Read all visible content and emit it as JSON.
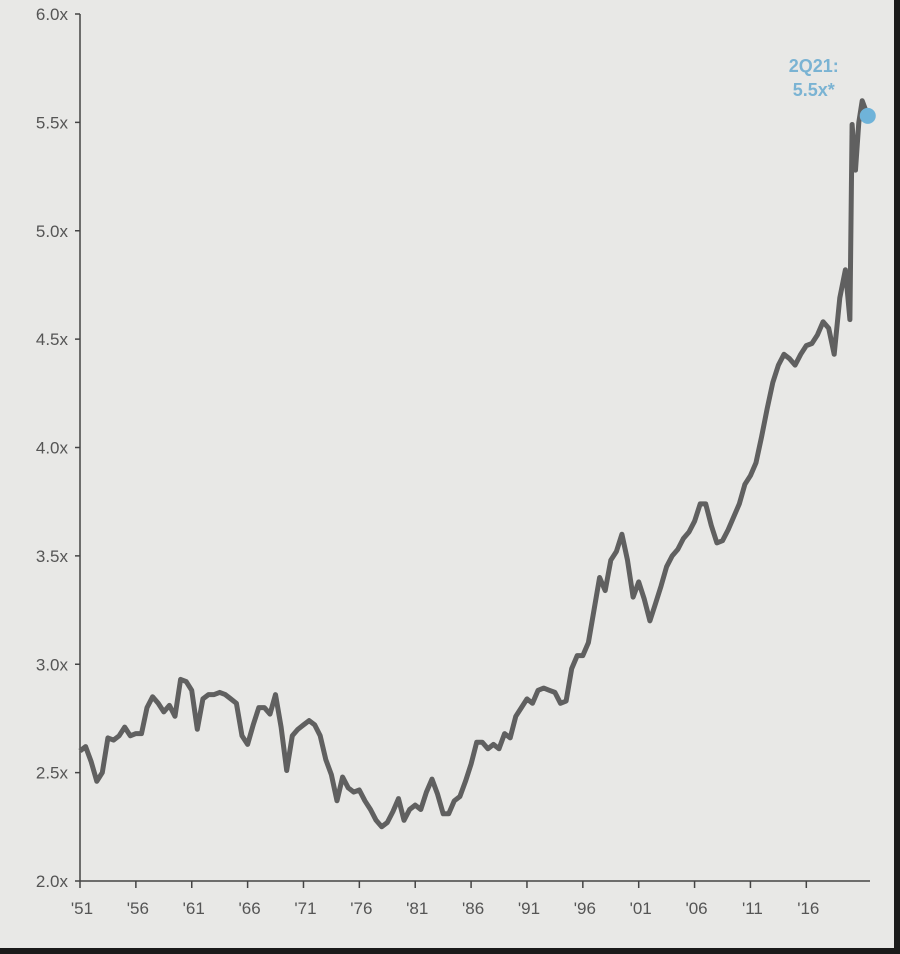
{
  "chart_data": {
    "type": "line",
    "title": "",
    "xlabel": "",
    "ylabel": "",
    "xlim": [
      1951,
      2021.7
    ],
    "ylim": [
      2.0,
      6.0
    ],
    "grid": false,
    "x_ticks": [
      1951,
      1956,
      1961,
      1966,
      1971,
      1976,
      1981,
      1986,
      1991,
      1996,
      2001,
      2006,
      2011,
      2016
    ],
    "x_tick_labels": [
      "'51",
      "'56",
      "'61",
      "'66",
      "'71",
      "'76",
      "'81",
      "'86",
      "'91",
      "'96",
      "'01",
      "'06",
      "'11",
      "'16"
    ],
    "y_ticks": [
      2.0,
      2.5,
      3.0,
      3.5,
      4.0,
      4.5,
      5.0,
      5.5,
      6.0
    ],
    "y_tick_labels": [
      "2.0x",
      "2.5x",
      "3.0x",
      "3.5x",
      "4.0x",
      "4.5x",
      "5.0x",
      "5.5x",
      "6.0x"
    ],
    "colors": {
      "line": "#606060",
      "highlight": "#6fb3d9",
      "annotation": "#7ab3d3",
      "background": "#e8e8e6"
    },
    "series": [
      {
        "points": [
          [
            1951,
            2.6
          ],
          [
            1951.5,
            2.62
          ],
          [
            1952,
            2.55
          ],
          [
            1952.5,
            2.46
          ],
          [
            1953,
            2.5
          ],
          [
            1953.5,
            2.66
          ],
          [
            1954,
            2.65
          ],
          [
            1954.5,
            2.67
          ],
          [
            1955,
            2.71
          ],
          [
            1955.5,
            2.67
          ],
          [
            1956,
            2.68
          ],
          [
            1956.5,
            2.68
          ],
          [
            1957,
            2.8
          ],
          [
            1957.5,
            2.85
          ],
          [
            1958,
            2.82
          ],
          [
            1958.5,
            2.78
          ],
          [
            1959,
            2.81
          ],
          [
            1959.5,
            2.76
          ],
          [
            1960,
            2.93
          ],
          [
            1960.5,
            2.92
          ],
          [
            1961,
            2.88
          ],
          [
            1961.5,
            2.7
          ],
          [
            1962,
            2.84
          ],
          [
            1962.5,
            2.86
          ],
          [
            1963,
            2.86
          ],
          [
            1963.5,
            2.87
          ],
          [
            1964,
            2.86
          ],
          [
            1964.5,
            2.84
          ],
          [
            1965,
            2.82
          ],
          [
            1965.5,
            2.67
          ],
          [
            1966,
            2.63
          ],
          [
            1966.5,
            2.72
          ],
          [
            1967,
            2.8
          ],
          [
            1967.5,
            2.8
          ],
          [
            1968,
            2.77
          ],
          [
            1968.5,
            2.86
          ],
          [
            1969,
            2.71
          ],
          [
            1969.5,
            2.51
          ],
          [
            1970,
            2.67
          ],
          [
            1970.5,
            2.7
          ],
          [
            1971,
            2.72
          ],
          [
            1971.5,
            2.74
          ],
          [
            1972,
            2.72
          ],
          [
            1972.5,
            2.67
          ],
          [
            1973,
            2.56
          ],
          [
            1973.5,
            2.49
          ],
          [
            1974,
            2.37
          ],
          [
            1974.5,
            2.48
          ],
          [
            1975,
            2.43
          ],
          [
            1975.5,
            2.41
          ],
          [
            1976,
            2.42
          ],
          [
            1976.5,
            2.37
          ],
          [
            1977,
            2.33
          ],
          [
            1977.5,
            2.28
          ],
          [
            1978,
            2.25
          ],
          [
            1978.5,
            2.27
          ],
          [
            1979,
            2.32
          ],
          [
            1979.5,
            2.38
          ],
          [
            1980,
            2.28
          ],
          [
            1980.5,
            2.33
          ],
          [
            1981,
            2.35
          ],
          [
            1981.5,
            2.33
          ],
          [
            1982,
            2.41
          ],
          [
            1982.5,
            2.47
          ],
          [
            1983,
            2.4
          ],
          [
            1983.5,
            2.31
          ],
          [
            1984,
            2.31
          ],
          [
            1984.5,
            2.37
          ],
          [
            1985,
            2.39
          ],
          [
            1985.5,
            2.46
          ],
          [
            1986,
            2.54
          ],
          [
            1986.5,
            2.64
          ],
          [
            1987,
            2.64
          ],
          [
            1987.5,
            2.61
          ],
          [
            1988,
            2.63
          ],
          [
            1988.5,
            2.61
          ],
          [
            1989,
            2.68
          ],
          [
            1989.5,
            2.66
          ],
          [
            1990,
            2.76
          ],
          [
            1990.5,
            2.8
          ],
          [
            1991,
            2.84
          ],
          [
            1991.5,
            2.82
          ],
          [
            1992,
            2.88
          ],
          [
            1992.5,
            2.89
          ],
          [
            1993,
            2.88
          ],
          [
            1993.5,
            2.87
          ],
          [
            1994,
            2.82
          ],
          [
            1994.5,
            2.83
          ],
          [
            1995,
            2.98
          ],
          [
            1995.5,
            3.04
          ],
          [
            1996,
            3.04
          ],
          [
            1996.5,
            3.1
          ],
          [
            1997,
            3.25
          ],
          [
            1997.5,
            3.4
          ],
          [
            1998,
            3.34
          ],
          [
            1998.5,
            3.48
          ],
          [
            1999,
            3.52
          ],
          [
            1999.5,
            3.6
          ],
          [
            2000,
            3.48
          ],
          [
            2000.5,
            3.31
          ],
          [
            2001,
            3.38
          ],
          [
            2001.5,
            3.3
          ],
          [
            2002,
            3.2
          ],
          [
            2002.5,
            3.28
          ],
          [
            2003,
            3.36
          ],
          [
            2003.5,
            3.45
          ],
          [
            2004,
            3.5
          ],
          [
            2004.5,
            3.53
          ],
          [
            2005,
            3.58
          ],
          [
            2005.5,
            3.61
          ],
          [
            2006,
            3.66
          ],
          [
            2006.5,
            3.74
          ],
          [
            2007,
            3.74
          ],
          [
            2007.5,
            3.64
          ],
          [
            2008,
            3.56
          ],
          [
            2008.5,
            3.57
          ],
          [
            2009,
            3.62
          ],
          [
            2009.5,
            3.68
          ],
          [
            2010,
            3.74
          ],
          [
            2010.5,
            3.83
          ],
          [
            2011,
            3.87
          ],
          [
            2011.5,
            3.93
          ],
          [
            2012,
            4.05
          ],
          [
            2012.5,
            4.18
          ],
          [
            2013,
            4.3
          ],
          [
            2013.5,
            4.38
          ],
          [
            2014,
            4.43
          ],
          [
            2014.5,
            4.41
          ],
          [
            2015,
            4.38
          ],
          [
            2015.5,
            4.43
          ],
          [
            2016,
            4.47
          ],
          [
            2016.5,
            4.48
          ],
          [
            2017,
            4.52
          ],
          [
            2017.5,
            4.58
          ],
          [
            2018,
            4.55
          ],
          [
            2018.5,
            4.43
          ],
          [
            2019,
            4.69
          ],
          [
            2019.5,
            4.82
          ],
          [
            2019.9,
            4.59
          ],
          [
            2020.1,
            5.49
          ],
          [
            2020.4,
            5.28
          ],
          [
            2020.7,
            5.5
          ],
          [
            2021.0,
            5.6
          ],
          [
            2021.5,
            5.53
          ]
        ]
      }
    ],
    "highlight_point": [
      2021.5,
      5.53
    ],
    "annotation": {
      "line1": "2Q21:",
      "line2": "5.5x*"
    }
  }
}
